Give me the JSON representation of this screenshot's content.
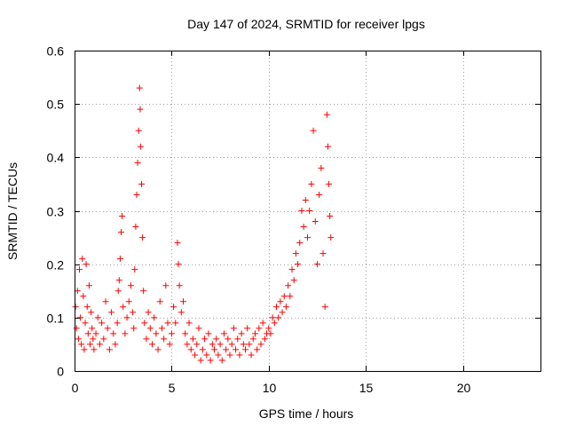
{
  "colors": {
    "series": "#ff0000",
    "grid": "#a0a0a0",
    "axis": "#000000",
    "background": "#ffffff"
  },
  "chart_data": {
    "type": "scatter",
    "title": "Day 147 of 2024, SRMTID for receiver lpgs",
    "xlabel": "GPS time / hours",
    "ylabel": "SRMTID / TECUs",
    "xlim": [
      0,
      24
    ],
    "ylim": [
      0,
      0.6
    ],
    "xticks": [
      0,
      5,
      10,
      15,
      20
    ],
    "xtick_labels": [
      "0",
      "5",
      "10",
      "15",
      "20"
    ],
    "yticks": [
      0,
      0.1,
      0.2,
      0.3,
      0.4,
      0.5,
      0.6
    ],
    "ytick_labels": [
      "0",
      "0.1",
      "0.2",
      "0.3",
      "0.4",
      "0.5",
      "0.6"
    ],
    "grid": true,
    "marker": "plus",
    "series": [
      {
        "name": "SRMTID",
        "color": "#ff0000",
        "points": [
          [
            0.05,
            0.12
          ],
          [
            0.1,
            0.08
          ],
          [
            0.15,
            0.15
          ],
          [
            0.2,
            0.06
          ],
          [
            0.25,
            0.19
          ],
          [
            0.3,
            0.1
          ],
          [
            0.35,
            0.05
          ],
          [
            0.4,
            0.21
          ],
          [
            0.45,
            0.14
          ],
          [
            0.5,
            0.04
          ],
          [
            0.55,
            0.09
          ],
          [
            0.6,
            0.2
          ],
          [
            0.65,
            0.12
          ],
          [
            0.7,
            0.07
          ],
          [
            0.75,
            0.16
          ],
          [
            0.8,
            0.05
          ],
          [
            0.85,
            0.11
          ],
          [
            0.9,
            0.08
          ],
          [
            0.95,
            0.06
          ],
          [
            1.0,
            0.04
          ],
          [
            1.1,
            0.07
          ],
          [
            1.2,
            0.1
          ],
          [
            1.3,
            0.05
          ],
          [
            1.4,
            0.09
          ],
          [
            1.5,
            0.06
          ],
          [
            1.6,
            0.13
          ],
          [
            1.7,
            0.08
          ],
          [
            1.8,
            0.04
          ],
          [
            1.9,
            0.11
          ],
          [
            2.0,
            0.07
          ],
          [
            2.1,
            0.05
          ],
          [
            2.2,
            0.09
          ],
          [
            2.25,
            0.15
          ],
          [
            2.3,
            0.17
          ],
          [
            2.35,
            0.21
          ],
          [
            2.4,
            0.26
          ],
          [
            2.45,
            0.29
          ],
          [
            2.5,
            0.12
          ],
          [
            2.6,
            0.07
          ],
          [
            2.7,
            0.1
          ],
          [
            2.8,
            0.13
          ],
          [
            2.9,
            0.16
          ],
          [
            3.0,
            0.11
          ],
          [
            3.05,
            0.08
          ],
          [
            3.1,
            0.19
          ],
          [
            3.15,
            0.27
          ],
          [
            3.2,
            0.33
          ],
          [
            3.25,
            0.39
          ],
          [
            3.3,
            0.45
          ],
          [
            3.35,
            0.53
          ],
          [
            3.38,
            0.49
          ],
          [
            3.4,
            0.42
          ],
          [
            3.45,
            0.35
          ],
          [
            3.5,
            0.25
          ],
          [
            3.55,
            0.15
          ],
          [
            3.6,
            0.09
          ],
          [
            3.7,
            0.06
          ],
          [
            3.8,
            0.11
          ],
          [
            3.9,
            0.08
          ],
          [
            4.0,
            0.05
          ],
          [
            4.1,
            0.1
          ],
          [
            4.2,
            0.07
          ],
          [
            4.3,
            0.04
          ],
          [
            4.4,
            0.13
          ],
          [
            4.5,
            0.08
          ],
          [
            4.6,
            0.06
          ],
          [
            4.7,
            0.16
          ],
          [
            4.8,
            0.09
          ],
          [
            4.9,
            0.05
          ],
          [
            5.0,
            0.07
          ],
          [
            5.1,
            0.12
          ],
          [
            5.2,
            0.09
          ],
          [
            5.3,
            0.24
          ],
          [
            5.35,
            0.2
          ],
          [
            5.4,
            0.16
          ],
          [
            5.5,
            0.11
          ],
          [
            5.6,
            0.13
          ],
          [
            5.7,
            0.07
          ],
          [
            5.8,
            0.05
          ],
          [
            5.9,
            0.09
          ],
          [
            6.0,
            0.04
          ],
          [
            6.1,
            0.06
          ],
          [
            6.2,
            0.03
          ],
          [
            6.3,
            0.05
          ],
          [
            6.4,
            0.08
          ],
          [
            6.5,
            0.02
          ],
          [
            6.6,
            0.04
          ],
          [
            6.7,
            0.06
          ],
          [
            6.8,
            0.03
          ],
          [
            6.9,
            0.07
          ],
          [
            7.0,
            0.02
          ],
          [
            7.1,
            0.05
          ],
          [
            7.2,
            0.04
          ],
          [
            7.3,
            0.06
          ],
          [
            7.4,
            0.03
          ],
          [
            7.5,
            0.05
          ],
          [
            7.6,
            0.02
          ],
          [
            7.7,
            0.07
          ],
          [
            7.8,
            0.04
          ],
          [
            7.9,
            0.06
          ],
          [
            8.0,
            0.03
          ],
          [
            8.1,
            0.05
          ],
          [
            8.2,
            0.08
          ],
          [
            8.3,
            0.04
          ],
          [
            8.4,
            0.06
          ],
          [
            8.5,
            0.03
          ],
          [
            8.6,
            0.07
          ],
          [
            8.7,
            0.05
          ],
          [
            8.8,
            0.04
          ],
          [
            8.9,
            0.08
          ],
          [
            9.0,
            0.05
          ],
          [
            9.1,
            0.03
          ],
          [
            9.2,
            0.06
          ],
          [
            9.3,
            0.07
          ],
          [
            9.4,
            0.04
          ],
          [
            9.5,
            0.08
          ],
          [
            9.6,
            0.05
          ],
          [
            9.7,
            0.09
          ],
          [
            9.8,
            0.06
          ],
          [
            9.9,
            0.07
          ],
          [
            10.0,
            0.08
          ],
          [
            10.1,
            0.07
          ],
          [
            10.2,
            0.1
          ],
          [
            10.3,
            0.09
          ],
          [
            10.4,
            0.12
          ],
          [
            10.5,
            0.1
          ],
          [
            10.6,
            0.13
          ],
          [
            10.7,
            0.11
          ],
          [
            10.8,
            0.14
          ],
          [
            10.9,
            0.12
          ],
          [
            11.0,
            0.16
          ],
          [
            11.1,
            0.14
          ],
          [
            11.2,
            0.19
          ],
          [
            11.3,
            0.17
          ],
          [
            11.4,
            0.22
          ],
          [
            11.5,
            0.2
          ],
          [
            11.6,
            0.24
          ],
          [
            11.7,
            0.3
          ],
          [
            11.8,
            0.27
          ],
          [
            11.9,
            0.32
          ],
          [
            12.0,
            0.25
          ],
          [
            12.1,
            0.3
          ],
          [
            12.2,
            0.35
          ],
          [
            12.3,
            0.45
          ],
          [
            12.4,
            0.28
          ],
          [
            12.5,
            0.2
          ],
          [
            12.6,
            0.33
          ],
          [
            12.7,
            0.38
          ],
          [
            12.8,
            0.22
          ],
          [
            12.9,
            0.12
          ],
          [
            13.0,
            0.48
          ],
          [
            13.05,
            0.42
          ],
          [
            13.1,
            0.35
          ],
          [
            13.15,
            0.29
          ],
          [
            13.2,
            0.25
          ]
        ]
      }
    ]
  }
}
